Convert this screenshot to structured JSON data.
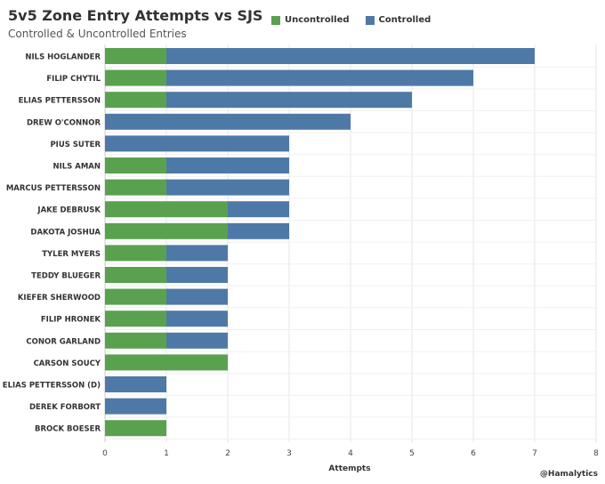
{
  "chart_data": {
    "type": "bar",
    "orientation": "horizontal",
    "stacked": true,
    "title": "5v5 Zone Entry Attempts vs SJS",
    "subtitle": "Controlled & Uncontrolled Entries",
    "xlabel": "Attempts",
    "xlim": [
      0,
      8
    ],
    "xticks": [
      "0",
      "1",
      "2",
      "3",
      "4",
      "5",
      "6",
      "7",
      "8"
    ],
    "grid": true,
    "legend_position": "top",
    "categories": [
      "NILS HOGLANDER",
      "FILIP CHYTIL",
      "ELIAS PETTERSSON",
      "DREW O'CONNOR",
      "PIUS SUTER",
      "NILS AMAN",
      "MARCUS PETTERSSON",
      "JAKE DEBRUSK",
      "DAKOTA JOSHUA",
      "TYLER MYERS",
      "TEDDY BLUEGER",
      "KIEFER SHERWOOD",
      "FILIP HRONEK",
      "CONOR GARLAND",
      "CARSON SOUCY",
      "ELIAS PETTERSSON (D)",
      "DEREK FORBORT",
      "BROCK BOESER"
    ],
    "series": [
      {
        "name": "Uncontrolled",
        "color": "#59a14f",
        "values": [
          1,
          1,
          1,
          0,
          0,
          1,
          1,
          2,
          2,
          1,
          1,
          1,
          1,
          1,
          2,
          0,
          0,
          1
        ]
      },
      {
        "name": "Controlled",
        "color": "#4e79a7",
        "values": [
          6,
          5,
          4,
          4,
          3,
          2,
          2,
          1,
          1,
          1,
          1,
          1,
          1,
          1,
          0,
          1,
          1,
          0
        ]
      }
    ]
  },
  "credit": "@Hamalytics"
}
